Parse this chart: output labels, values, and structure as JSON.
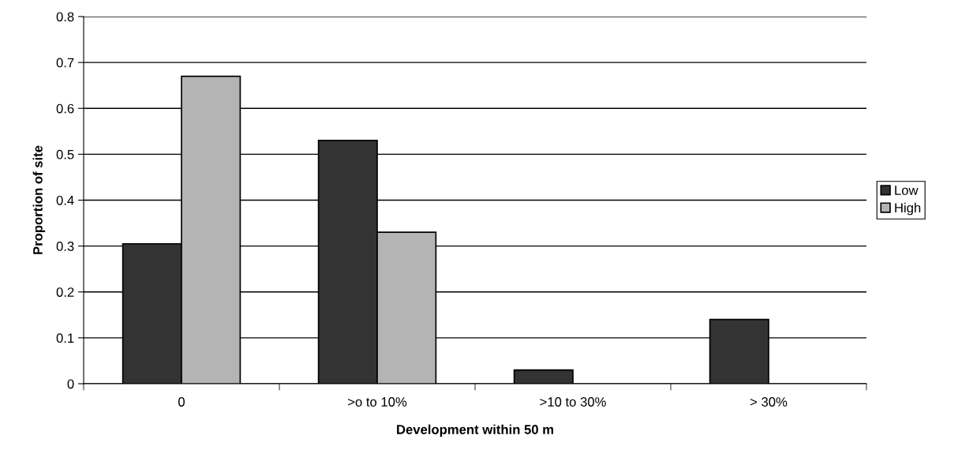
{
  "chart_data": {
    "type": "bar",
    "xlabel": "Development within 50 m",
    "ylabel": "Proportion of site",
    "categories": [
      "0",
      ">o to 10%",
      ">10 to 30%",
      "> 30%"
    ],
    "series": [
      {
        "name": "Low",
        "color": "#333333",
        "values": [
          0.305,
          0.53,
          0.03,
          0.14
        ]
      },
      {
        "name": "High",
        "color": "#b4b4b4",
        "values": [
          0.67,
          0.33,
          null,
          null
        ]
      }
    ],
    "ylim": [
      0,
      0.8
    ],
    "yticks": [
      0,
      0.1,
      0.2,
      0.3,
      0.4,
      0.5,
      0.6,
      0.7,
      0.8
    ],
    "grid": "y",
    "legend": "right"
  }
}
